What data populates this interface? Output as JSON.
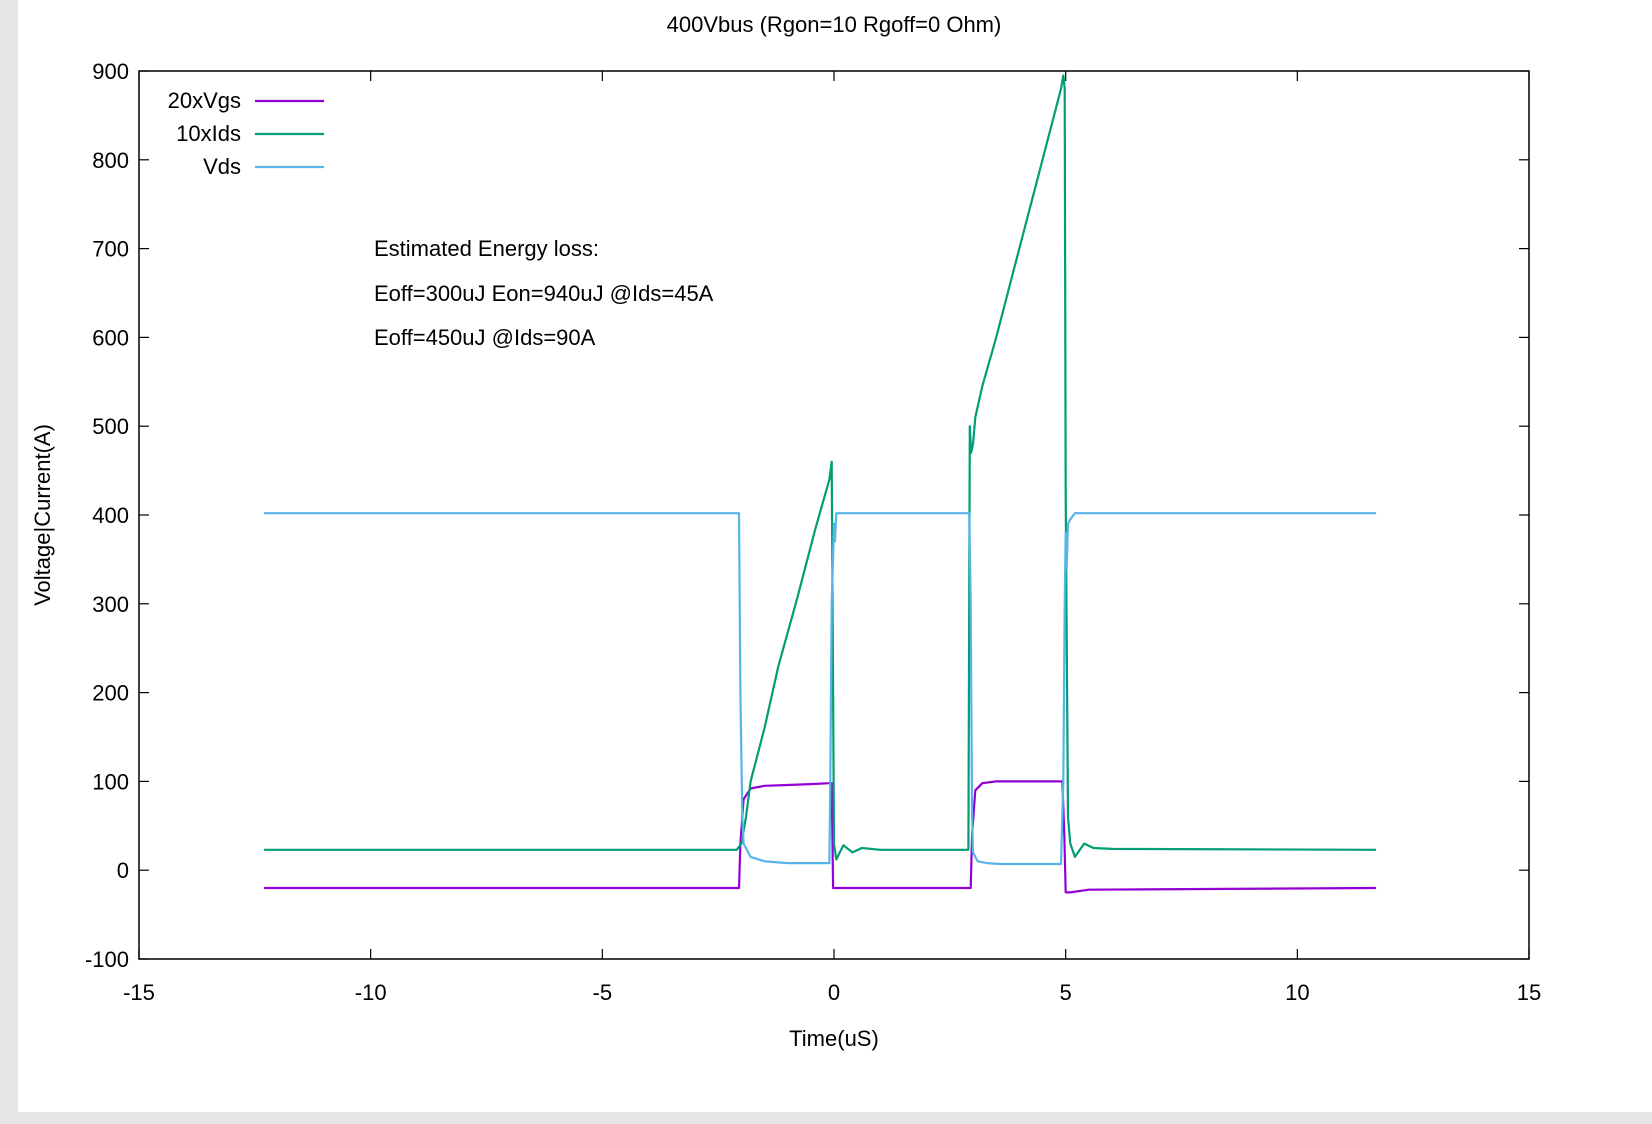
{
  "chart_data": {
    "type": "line",
    "title": "400Vbus (Rgon=10 Rgoff=0 Ohm)",
    "xlabel": "Time(uS)",
    "ylabel": "Voltage|Current(A)",
    "xlim": [
      -15,
      15
    ],
    "ylim": [
      -100,
      900
    ],
    "xticks": [
      -15,
      -10,
      -5,
      0,
      5,
      10,
      15
    ],
    "yticks": [
      -100,
      0,
      100,
      200,
      300,
      400,
      500,
      600,
      700,
      800,
      900
    ],
    "grid": false,
    "legend_position": "top-left",
    "annotations": [
      "Estimated Energy loss:",
      "Eoff=300uJ Eon=940uJ @Ids=45A",
      "Eoff=450uJ  @Ids=90A"
    ],
    "series": [
      {
        "name": "20xVgs",
        "color": "#9400d3",
        "x": [
          -12.3,
          -2.05,
          -2.02,
          -1.95,
          -1.8,
          -1.5,
          -1.0,
          -0.5,
          -0.1,
          -0.05,
          -0.02,
          0.05,
          0.3,
          2.95,
          2.98,
          3.05,
          3.2,
          3.5,
          4.5,
          4.93,
          4.97,
          5.0,
          5.1,
          5.5,
          11.7
        ],
        "y": [
          -20,
          -20,
          30,
          80,
          92,
          95,
          96,
          97,
          98,
          98,
          -20,
          -20,
          -20,
          -20,
          40,
          90,
          98,
          100,
          100,
          100,
          40,
          -25,
          -25,
          -22,
          -20
        ]
      },
      {
        "name": "10xIds",
        "color": "#009e73",
        "x": [
          -12.3,
          -2.1,
          -2.0,
          -1.9,
          -1.8,
          -1.5,
          -1.2,
          -0.8,
          -0.4,
          -0.1,
          -0.05,
          -0.02,
          0.0,
          0.05,
          0.2,
          0.4,
          0.6,
          1.0,
          2.9,
          2.93,
          2.96,
          3.0,
          3.05,
          3.2,
          3.5,
          4.0,
          4.5,
          4.9,
          4.95,
          4.98,
          5.0,
          5.05,
          5.1,
          5.2,
          5.4,
          5.6,
          6.0,
          11.7
        ],
        "y": [
          23,
          23,
          30,
          60,
          100,
          160,
          230,
          305,
          385,
          440,
          460,
          200,
          30,
          12,
          28,
          20,
          25,
          23,
          23,
          500,
          470,
          480,
          510,
          545,
          600,
          700,
          800,
          880,
          895,
          880,
          420,
          60,
          30,
          15,
          30,
          25,
          24,
          23
        ]
      },
      {
        "name": "Vds",
        "color": "#56b4e9",
        "x": [
          -12.3,
          -2.05,
          -2.02,
          -1.98,
          -1.95,
          -1.8,
          -1.5,
          -1.0,
          -0.5,
          -0.1,
          -0.08,
          -0.05,
          0.0,
          0.02,
          0.05,
          0.1,
          0.2,
          2.92,
          2.95,
          2.98,
          3.0,
          3.1,
          3.3,
          3.6,
          4.0,
          4.5,
          4.9,
          4.95,
          4.98,
          5.0,
          5.02,
          5.05,
          5.1,
          5.2,
          5.5,
          11.7
        ],
        "y": [
          402,
          402,
          200,
          60,
          30,
          15,
          10,
          8,
          8,
          8,
          100,
          300,
          390,
          370,
          402,
          402,
          402,
          402,
          300,
          60,
          20,
          10,
          8,
          7,
          7,
          7,
          7,
          100,
          300,
          380,
          340,
          390,
          395,
          402,
          402,
          402
        ]
      }
    ]
  }
}
